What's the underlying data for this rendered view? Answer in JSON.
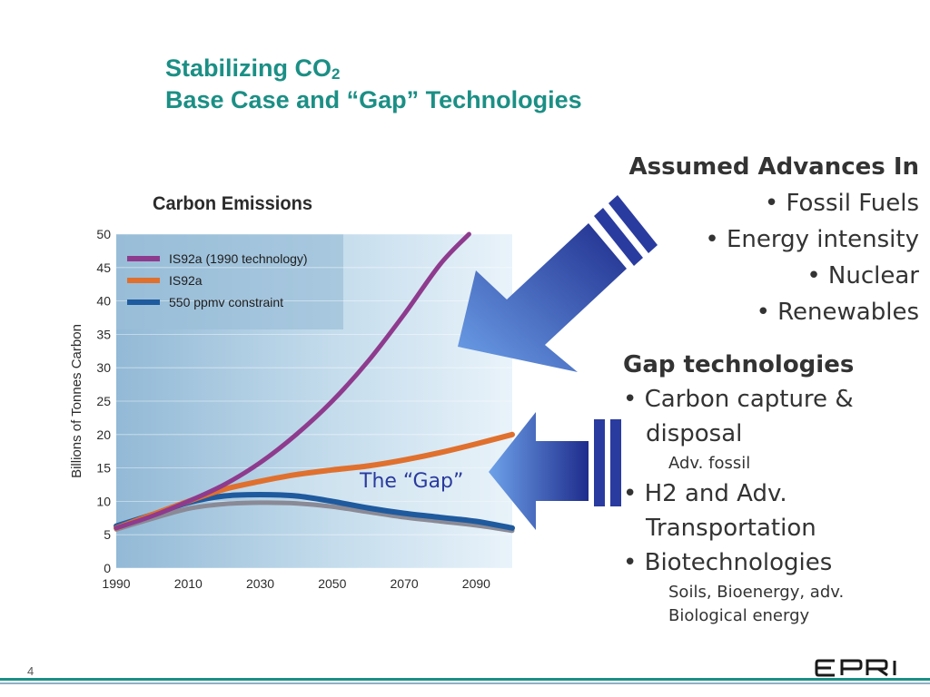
{
  "slide": {
    "title_line1": "Stabilizing CO",
    "title_sub": "2",
    "title_line2": "Base Case and “Gap” Technologies",
    "page_number": "4",
    "logo_text": "EPRI"
  },
  "chart_data": {
    "type": "line",
    "title": "Carbon Emissions",
    "ylabel": "Billions of Tonnes Carbon",
    "xlabel": "",
    "xlim": [
      1990,
      2100
    ],
    "ylim": [
      0,
      50
    ],
    "x_ticks": [
      1990,
      2010,
      2030,
      2050,
      2070,
      2090
    ],
    "y_ticks": [
      0,
      5,
      10,
      15,
      20,
      25,
      30,
      35,
      40,
      45,
      50
    ],
    "grid": true,
    "legend_position": "top-left",
    "annotation": "The “Gap”",
    "series": [
      {
        "name": "IS92a (1990 technology)",
        "color": "#8e3b8e",
        "x": [
          1990,
          2000,
          2010,
          2020,
          2030,
          2040,
          2050,
          2060,
          2070,
          2080,
          2088
        ],
        "y": [
          6,
          7.8,
          10,
          12.5,
          15.8,
          20,
          25,
          31,
          38,
          45.5,
          50
        ]
      },
      {
        "name": "IS92a",
        "color": "#e0702e",
        "x": [
          1990,
          2000,
          2010,
          2020,
          2030,
          2040,
          2050,
          2060,
          2070,
          2080,
          2090,
          2100
        ],
        "y": [
          6,
          8,
          10,
          11.8,
          13,
          14,
          14.7,
          15.3,
          16.2,
          17.3,
          18.6,
          20
        ]
      },
      {
        "name": "550 ppmv constraint",
        "color": "#1f5a9e",
        "x": [
          1990,
          2000,
          2010,
          2020,
          2030,
          2040,
          2050,
          2060,
          2070,
          2080,
          2090,
          2100
        ],
        "y": [
          6.3,
          8,
          9.8,
          10.8,
          11,
          10.8,
          10,
          9,
          8.2,
          7.6,
          7,
          6
        ]
      },
      {
        "name": "",
        "color": "#8a8a96",
        "x": [
          1990,
          2000,
          2010,
          2020,
          2030,
          2040,
          2050,
          2060,
          2070,
          2080,
          2090,
          2100
        ],
        "y": [
          5.8,
          7.4,
          8.9,
          9.6,
          9.8,
          9.7,
          9.2,
          8.4,
          7.6,
          7,
          6.4,
          5.6
        ]
      }
    ]
  },
  "assumed": {
    "header": "Assumed Advances In",
    "items": [
      "• Fossil Fuels",
      "• Energy intensity",
      "• Nuclear",
      "• Renewables"
    ]
  },
  "gap": {
    "header": "Gap technologies",
    "item1": "• Carbon capture & disposal",
    "item1_sub": "Adv. fossil",
    "item2": "• H2 and Adv. Transportation",
    "item3": "• Biotechnologies",
    "item3_sub1": "Soils, Bioenergy, adv.",
    "item3_sub2": "Biological energy"
  },
  "colors": {
    "title": "#1b8f85",
    "arrow_fill": "#3a5cc8",
    "chart_bg": "#cfe3f0"
  }
}
